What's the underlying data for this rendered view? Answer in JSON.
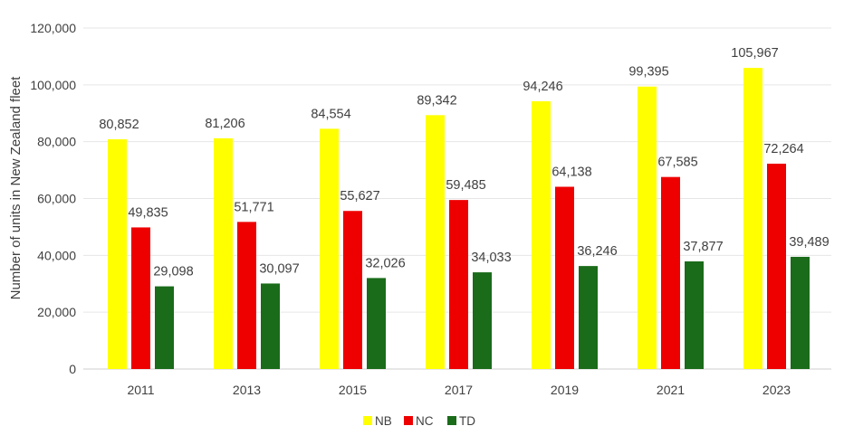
{
  "chart_data": {
    "type": "bar",
    "title": "",
    "xlabel": "",
    "ylabel": "Number of units in New Zealand fleet",
    "ylim": [
      0,
      120000
    ],
    "yticks": [
      0,
      20000,
      40000,
      60000,
      80000,
      100000,
      120000
    ],
    "ytick_labels": [
      "0",
      "20,000",
      "40,000",
      "60,000",
      "80,000",
      "100,000",
      "120,000"
    ],
    "grid": true,
    "legend_position": "bottom",
    "categories": [
      "2011",
      "2013",
      "2015",
      "2017",
      "2019",
      "2021",
      "2023"
    ],
    "series": [
      {
        "name": "NB",
        "color": "#FFFF00",
        "values": [
          80852,
          81206,
          84554,
          89342,
          94246,
          99395,
          105967
        ],
        "labels": [
          "80,852",
          "81,206",
          "84,554",
          "89,342",
          "94,246",
          "99,395",
          "105,967"
        ]
      },
      {
        "name": "NC",
        "color": "#EE0000",
        "values": [
          49835,
          51771,
          55627,
          59485,
          64138,
          67585,
          72264
        ],
        "labels": [
          "49,835",
          "51,771",
          "55,627",
          "59,485",
          "64,138",
          "67,585",
          "72,264"
        ]
      },
      {
        "name": "TD",
        "color": "#1A6B1A",
        "values": [
          29098,
          30097,
          32026,
          34033,
          36246,
          37877,
          39489
        ],
        "labels": [
          "29,098",
          "30,097",
          "32,026",
          "34,033",
          "36,246",
          "37,877",
          "39,489"
        ]
      }
    ]
  }
}
